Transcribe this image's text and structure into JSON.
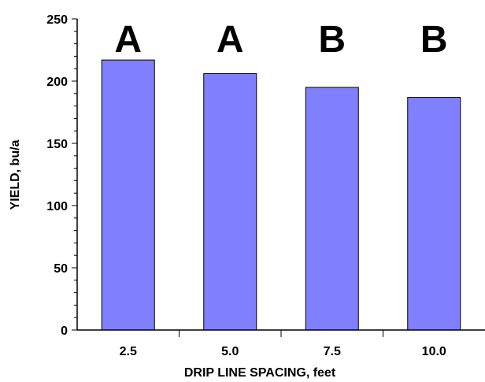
{
  "chart_data": {
    "type": "bar",
    "title": "",
    "xlabel": "DRIP LINE SPACING, feet",
    "ylabel": "YIELD, bu/a",
    "categories": [
      "2.5",
      "5.0",
      "7.5",
      "10.0"
    ],
    "values": [
      217,
      206,
      195,
      187
    ],
    "annotations": [
      "A",
      "A",
      "B",
      "B"
    ],
    "ylim": [
      0,
      250
    ],
    "yticks": [
      "0",
      "50",
      "100",
      "150",
      "200",
      "250"
    ],
    "grid": false,
    "bar_color": "#8080ff"
  }
}
